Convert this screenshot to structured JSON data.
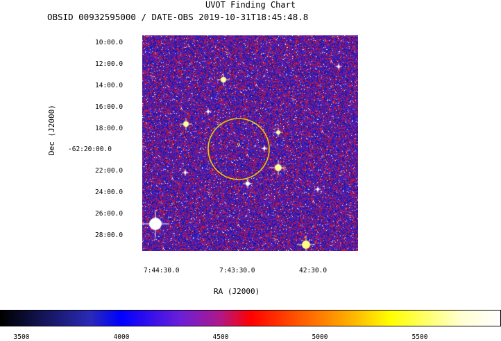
{
  "chart": {
    "title": "UVOT Finding Chart",
    "subtitle": "OBSID 00932595000 / DATE-OBS 2019-10-31T18:45:48.8",
    "ylabel": "Dec  (J2000)",
    "xlabel": "RA  (J2000)",
    "y_ticks": [
      "10:00.0",
      "12:00.0",
      "14:00.0",
      "16:00.0",
      "18:00.0",
      "-62:20:00.0",
      "22:00.0",
      "24:00.0",
      "26:00.0",
      "28:00.0"
    ],
    "x_ticks": [
      "7:44:30.0",
      "7:43:30.0",
      "42:30.0"
    ],
    "colorbar_ticks": [
      "3500",
      "4000",
      "4500",
      "5000",
      "5500"
    ],
    "colors": {
      "background": "#ffffff",
      "circle": "#e8c800",
      "low": "#2a22c8",
      "mid": "#ff1a00",
      "high": "#ffff60"
    }
  }
}
